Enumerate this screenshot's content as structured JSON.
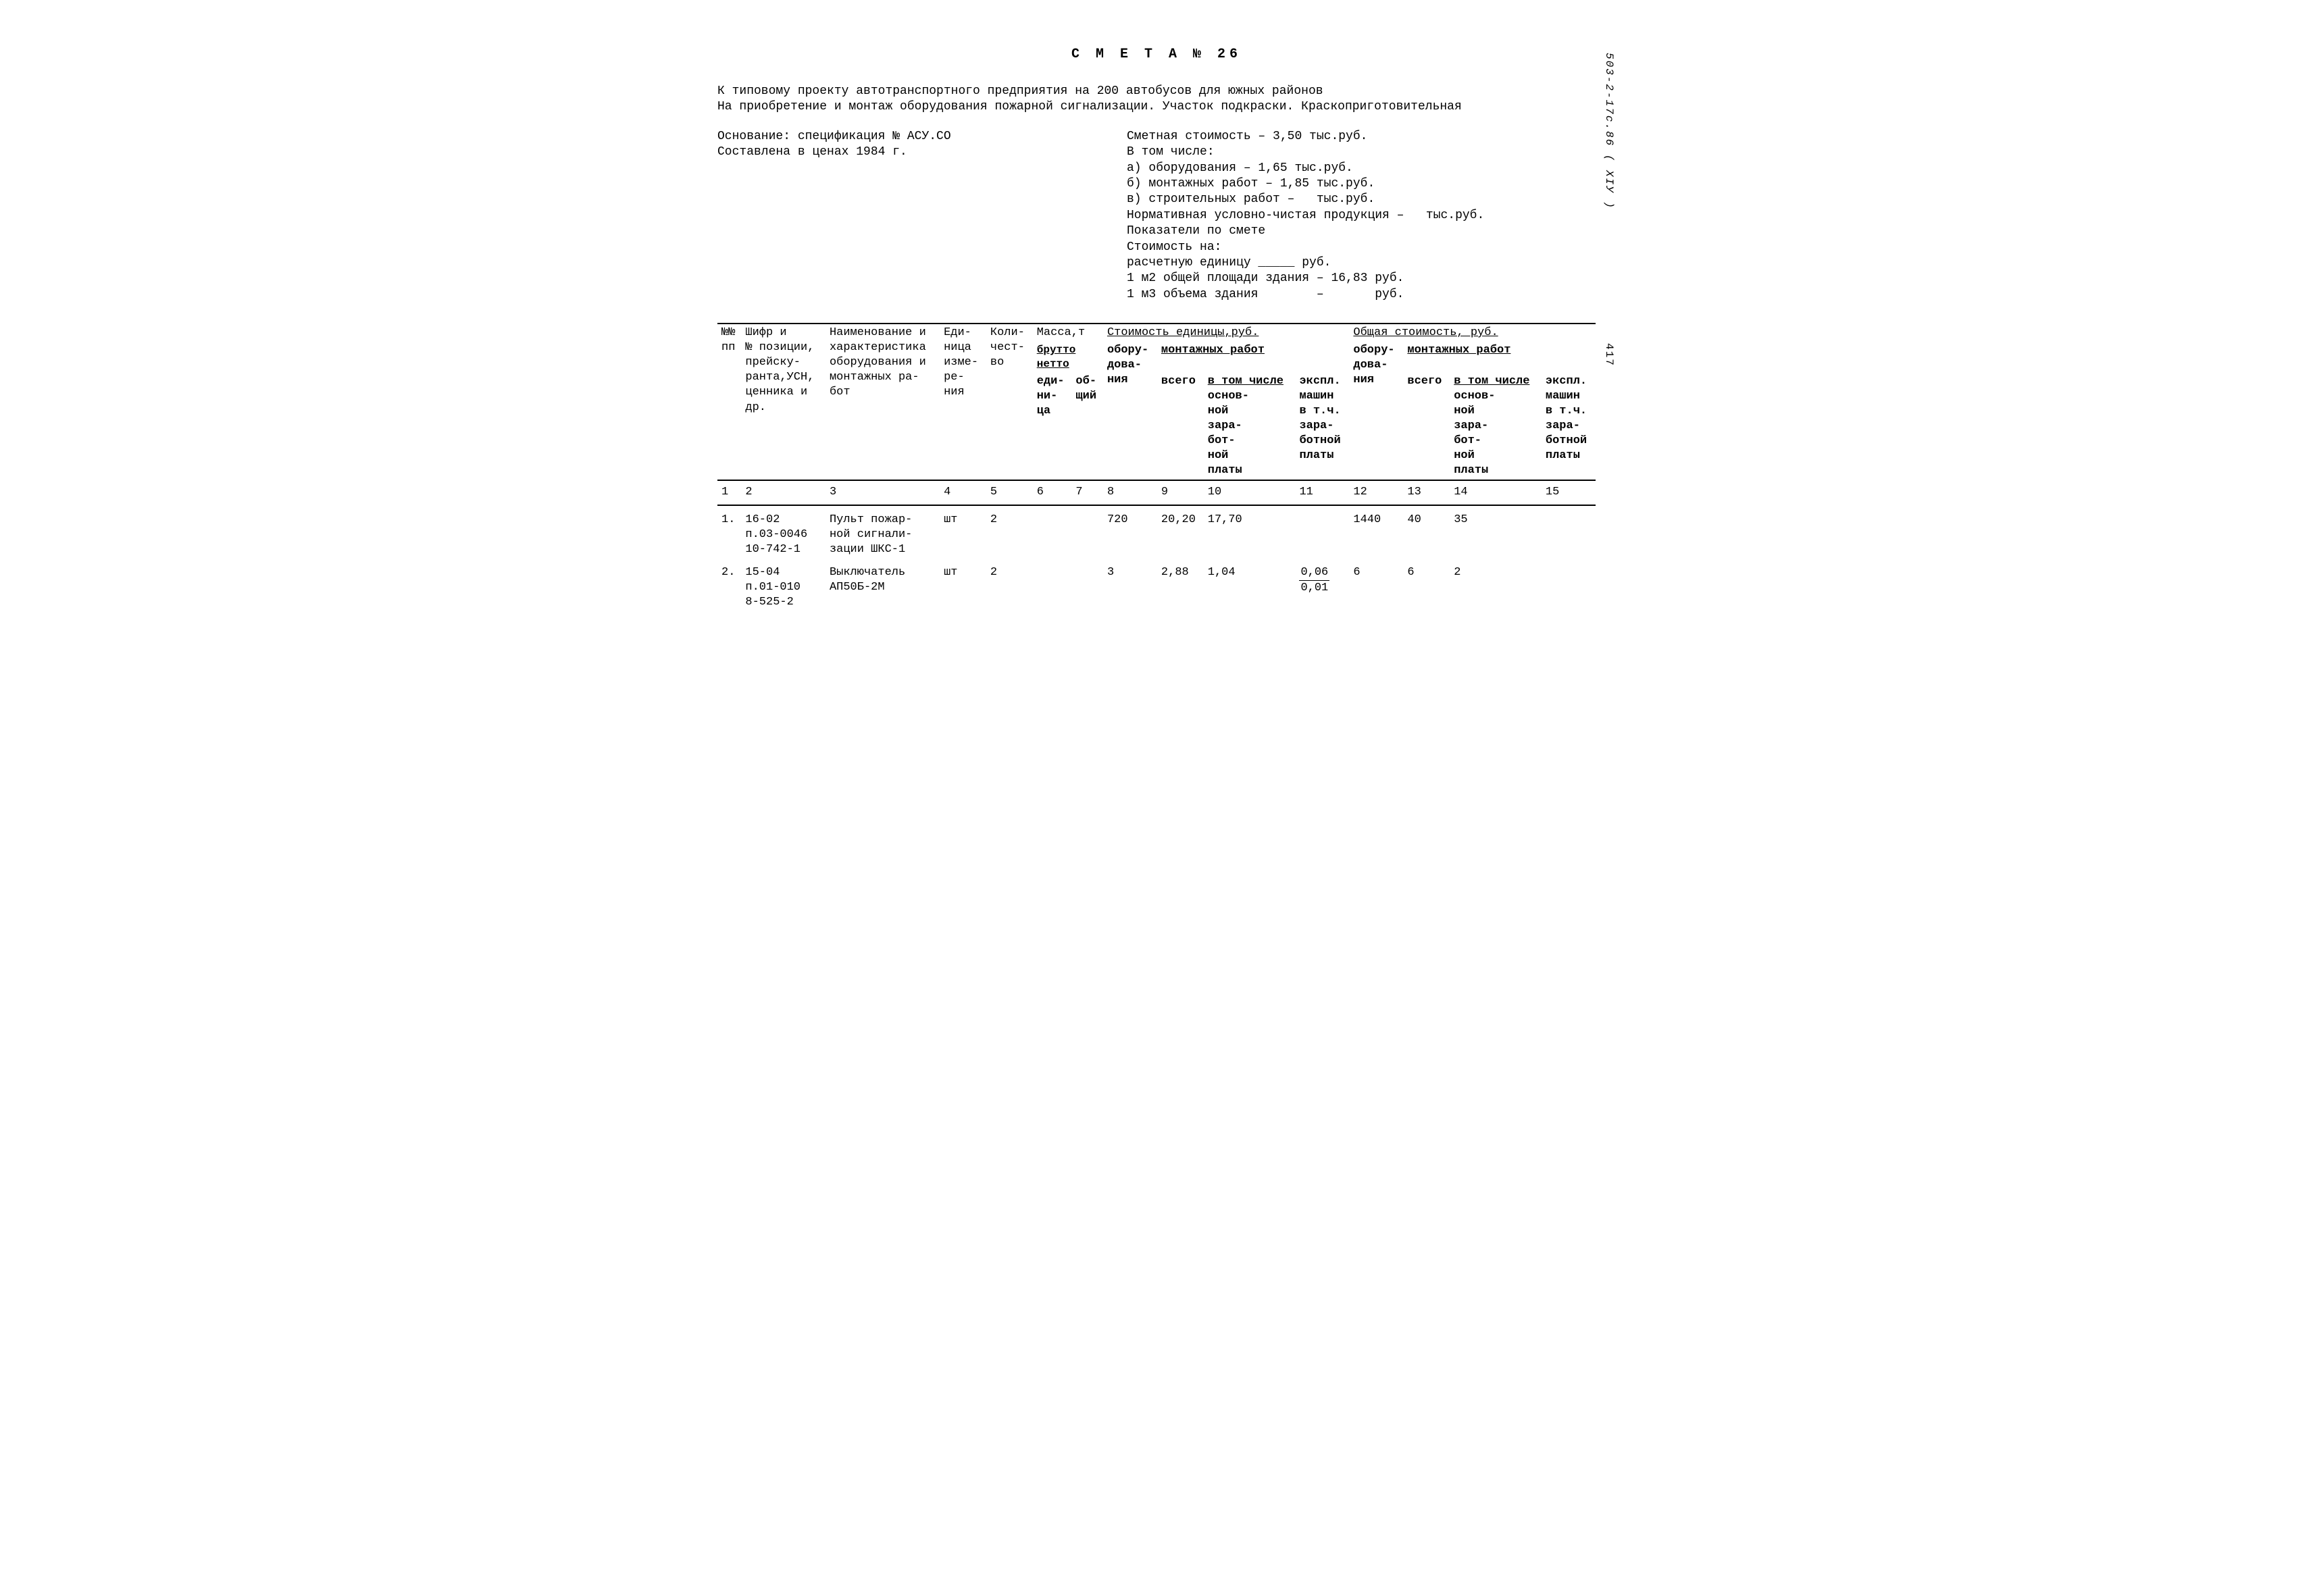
{
  "doc_ref": "503-2-17с.86 ( XIУ )",
  "page_num": "417",
  "title": "С М Е Т А  № 26",
  "intro_line1": "К типовому проекту автотранспортного предприятия на 200 автобусов для южных районов",
  "intro_line2": "На приобретение и монтаж оборудования пожарной сигнализации. Участок подкраски. Краскоприготовительная",
  "basis_line1": "Основание: спецификация № АСУ.СО",
  "basis_line2": "Составлена в ценах 1984 г.",
  "cost_block": {
    "l1": "Сметная стоимость – 3,50 тыс.руб.",
    "l2": "В том числе:",
    "l3": "а) оборудования – 1,65 тыс.руб.",
    "l4": "б) монтажных работ – 1,85 тыс.руб.",
    "l5": "в) строительных работ –   тыс.руб.",
    "l6": "Нормативная условно-чистая продукция –   тыс.руб.",
    "l7": "Показатели по смете",
    "l8": "Стоимость на:",
    "l9": "расчетную единицу _____ руб.",
    "l10": "1 м2 общей площади здания – 16,83 руб.",
    "l11": "1 м3 объема здания        –       руб."
  },
  "headers": {
    "c1": "№№\nпп",
    "c2": "Шифр и\n№ позиции,\nпрейску-\nранта,УСН,\nценника и\nдр.",
    "c3": "Наименование и\nхарактеристика\nоборудования и\nмонтажных ра-\nбот",
    "c4": "Еди-\nница\nизме-\nре-\nния",
    "c5": "Коли-\nчест-\nво",
    "c6_top": "Масса,т",
    "c6": "брутто",
    "c6b": "нетто",
    "c6c": "еди-\nни-\nца",
    "c7": "об-\nщий",
    "c8_top": "Стоимость единицы,руб.",
    "c8": "обору-\nдова-\nния",
    "c9_top": "монтажных работ",
    "c9": "всего",
    "c10_top": "в том числе",
    "c10": "основ-\nной\nзара-\nбот-\nной\nплаты",
    "c11": "экспл.\nмашин\nв т.ч.\nзара-\nботной\nплаты",
    "c12_top": "Общая стоимость, руб.",
    "c12": "обору-\nдова-\nния",
    "c13_top": "монтажных работ",
    "c13": "всего",
    "c14_top": "в том числе",
    "c14": "основ-\nной\nзара-\nбот-\nной\nплаты",
    "c15": "экспл.\nмашин\nв т.ч.\nзара-\nботной\nплаты"
  },
  "col_nums": [
    "1",
    "2",
    "3",
    "4",
    "5",
    "6",
    "7",
    "8",
    "9",
    "10",
    "11",
    "12",
    "13",
    "14",
    "15"
  ],
  "rows": [
    {
      "n": "1.",
      "code": "16-02\nп.03-0046\n10-742-1",
      "name": "Пульт пожар-\nной сигнали-\nзации ШКС-1",
      "unit": "шт",
      "qty": "2",
      "c6": "",
      "c7": "",
      "c8": "720",
      "c9": "20,20",
      "c10": "17,70",
      "c11": "",
      "c12": "1440",
      "c13": "40",
      "c14": "35",
      "c15": ""
    },
    {
      "n": "2.",
      "code": "15-04\nп.01-010\n8-525-2",
      "name": "Выключатель\nАП50Б-2М",
      "unit": "шт",
      "qty": "2",
      "c6": "",
      "c7": "",
      "c8": "3",
      "c9": "2,88",
      "c10": "1,04",
      "c11_top": "0,06",
      "c11_bot": "0,01",
      "c12": "6",
      "c13": "6",
      "c14": "2",
      "c15": ""
    }
  ]
}
